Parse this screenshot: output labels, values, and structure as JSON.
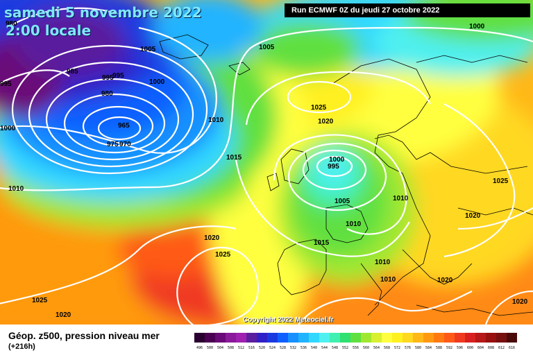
{
  "header": {
    "date": "samedi 5 novembre 2022",
    "time": "2:00 locale",
    "run": "Run ECMWF 0Z du jeudi 27 octobre 2022"
  },
  "copyright": "Copyright 2022 Meteociel.fr",
  "legend": {
    "title": "Géop. z500, pression niveau mer",
    "subtitle": "(+216h)",
    "scale_values": [
      "496",
      "500",
      "504",
      "508",
      "512",
      "516",
      "520",
      "524",
      "528",
      "532",
      "536",
      "540",
      "544",
      "548",
      "552",
      "556",
      "560",
      "564",
      "568",
      "572",
      "576",
      "580",
      "584",
      "588",
      "592",
      "596",
      "600",
      "604",
      "608",
      "612",
      "616"
    ],
    "scale_colors": [
      "#2a0030",
      "#4b0052",
      "#6a0a78",
      "#8a1a9a",
      "#a020b0",
      "#5a1e9e",
      "#3020c8",
      "#1a3ae0",
      "#1060ff",
      "#1890ff",
      "#20b4ff",
      "#30d8ff",
      "#50f0f0",
      "#40f0b0",
      "#30e070",
      "#60e040",
      "#a0e830",
      "#d8f030",
      "#ffff40",
      "#fff020",
      "#ffd820",
      "#ffb818",
      "#ff9a10",
      "#ff7a10",
      "#ff5a18",
      "#f03a20",
      "#d82020",
      "#b81818",
      "#981010",
      "#781010",
      "#4a0a0a"
    ]
  },
  "isobar_labels": {
    "l980_a": "980",
    "l985": "985",
    "l995_a": "995",
    "l995_b": "995",
    "l995_c": "995",
    "l1005_a": "1005",
    "l1000_a": "1000",
    "l980_b": "980",
    "l965": "965",
    "l975": "975",
    "l970": "970",
    "l1000_b": "1000",
    "l1005_b": "1005",
    "l1000_c": "1000",
    "l1025_a": "1025",
    "l1020_a": "1020",
    "l1010_a": "1010",
    "l1015_a": "1015",
    "l1000_d": "1000",
    "l995_d": "995",
    "l1005_c": "1005",
    "l1010_b": "1010",
    "l1010_c": "1010",
    "l1025_b": "1025",
    "l1020_b": "1020",
    "l1015_b": "1015",
    "l1010_d": "1010",
    "l1010_e": "1010",
    "l1020_c": "1020",
    "l1025_c": "1025",
    "l1020_d": "1020",
    "l1025_d": "1025",
    "l1010_f": "1010",
    "l1020_e": "1020",
    "l1010_g": "1010"
  }
}
